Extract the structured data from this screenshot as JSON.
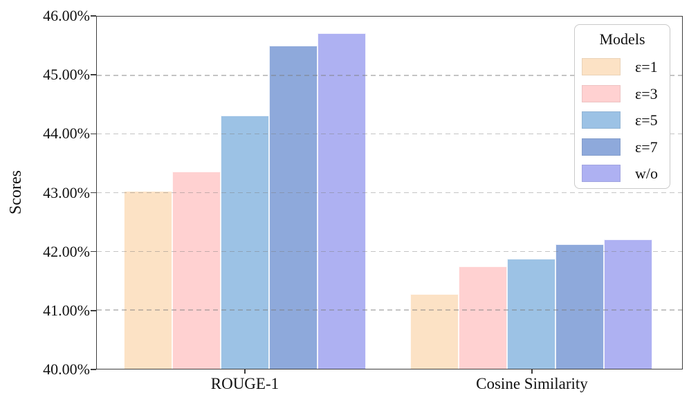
{
  "chart_data": {
    "type": "bar",
    "title": "",
    "xlabel": "",
    "ylabel": "Scores",
    "categories": [
      "ROUGE-1",
      "Cosine Similarity"
    ],
    "series": [
      {
        "name": "ε=1",
        "color": "#FCE2C5",
        "values": [
          43.03,
          41.27
        ]
      },
      {
        "name": "ε=3",
        "color": "#FFD1D1",
        "values": [
          43.36,
          41.74
        ]
      },
      {
        "name": "ε=5",
        "color": "#9CC2E5",
        "values": [
          44.31,
          41.88
        ]
      },
      {
        "name": "ε=7",
        "color": "#8EA9DB",
        "values": [
          45.5,
          42.12
        ]
      },
      {
        "name": "w/o",
        "color": "#AEB1F2",
        "values": [
          45.72,
          42.2
        ]
      }
    ],
    "legend": {
      "title": "Models",
      "position": "upper right",
      "entries": [
        "ε=1",
        "ε=3",
        "ε=5",
        "ε=7",
        "w/o"
      ]
    },
    "ylim": [
      40,
      46
    ],
    "ytick_values": [
      40,
      41,
      42,
      43,
      44,
      45,
      46
    ],
    "ytick_labels": [
      "40.00%",
      "41.00%",
      "42.00%",
      "43.00%",
      "44.00%",
      "45.00%",
      "46.00%"
    ],
    "grid": {
      "axis": "y",
      "style": "dashed",
      "drawn_over_bars": true
    }
  }
}
